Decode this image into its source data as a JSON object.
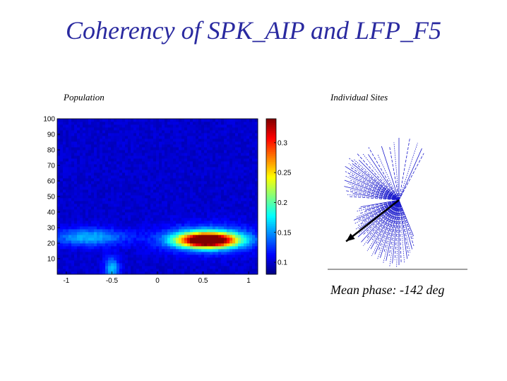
{
  "slide": {
    "title": "Coherency of SPK_AIP and LFP_F5",
    "population_label": "Population",
    "individual_label": "Individual Sites",
    "mean_phase_text": "Mean phase: -142 deg"
  },
  "chart_data": [
    {
      "type": "heatmap",
      "name": "Population",
      "x": [
        -1.1,
        1.1
      ],
      "y": [
        0,
        100
      ],
      "xticks": [
        "-1",
        "-0.5",
        "0",
        "0.5",
        "1"
      ],
      "xtick_values": [
        -1,
        -0.5,
        0,
        0.5,
        1
      ],
      "yticks": [
        "10",
        "20",
        "30",
        "40",
        "50",
        "60",
        "70",
        "80",
        "90",
        "100"
      ],
      "ytick_values": [
        10,
        20,
        30,
        40,
        50,
        60,
        70,
        80,
        90,
        100
      ],
      "background_value": 0.1,
      "blobs": [
        {
          "x": 0.55,
          "y": 22,
          "sx": 0.22,
          "sy": 3.2,
          "amp": 0.27
        },
        {
          "x": 0.55,
          "y": 23,
          "sx": 0.35,
          "sy": 6,
          "amp": 0.07
        },
        {
          "x": -0.75,
          "y": 24,
          "sx": 0.28,
          "sy": 4,
          "amp": 0.06
        },
        {
          "x": -0.5,
          "y": 4,
          "sx": 0.06,
          "sy": 5,
          "amp": 0.06
        }
      ],
      "colorbar": {
        "ticks": [
          "0.1",
          "0.15",
          "0.2",
          "0.25",
          "0.3"
        ],
        "tick_values": [
          0.1,
          0.15,
          0.2,
          0.25,
          0.3
        ],
        "min": 0.08,
        "max": 0.34
      }
    },
    {
      "type": "polar-lines",
      "name": "Individual Sites",
      "units": "deg",
      "site_angles_deg": [
        -170,
        -168,
        -165,
        -163,
        -161,
        -158,
        -156,
        -154,
        -152,
        -150,
        -148,
        -146,
        -144,
        -142,
        -140,
        -138,
        -136,
        -134,
        -132,
        -130,
        -128,
        -126,
        -124,
        -122,
        -120,
        -118,
        -116,
        -114,
        -112,
        -110,
        -108,
        -106,
        -104,
        -102,
        -100,
        -98,
        -96,
        -94,
        -92,
        -90,
        -88,
        -85,
        -82,
        -80,
        -78,
        -75,
        -72,
        -70,
        -68,
        176,
        174,
        172,
        170,
        168,
        166,
        164,
        162,
        160,
        158,
        156,
        154,
        152,
        150,
        148,
        146,
        144,
        142,
        140,
        138,
        135,
        132,
        128,
        124,
        120,
        115,
        108,
        100,
        95,
        90,
        80,
        72,
        66,
        62
      ],
      "site_lengths": [
        0.55,
        0.6,
        0.62,
        0.5,
        0.58,
        0.66,
        0.7,
        0.64,
        0.72,
        0.6,
        0.68,
        0.74,
        0.7,
        0.62,
        0.75,
        0.78,
        0.72,
        0.66,
        0.8,
        0.7,
        0.82,
        0.76,
        0.68,
        0.85,
        0.8,
        0.72,
        0.88,
        0.84,
        0.76,
        0.9,
        0.86,
        0.78,
        0.92,
        0.88,
        0.8,
        0.95,
        0.9,
        0.85,
        0.96,
        0.92,
        0.88,
        0.9,
        0.84,
        0.8,
        0.76,
        0.72,
        0.68,
        0.6,
        0.55,
        0.7,
        0.74,
        0.66,
        0.78,
        0.72,
        0.8,
        0.7,
        0.76,
        0.82,
        0.74,
        0.84,
        0.78,
        0.86,
        0.8,
        0.9,
        0.82,
        0.88,
        0.84,
        0.92,
        0.86,
        0.8,
        0.88,
        0.84,
        0.78,
        0.86,
        0.72,
        0.8,
        0.76,
        0.82,
        0.88,
        0.9,
        0.85,
        0.8,
        0.75
      ],
      "mean_phase_deg": -142
    }
  ]
}
